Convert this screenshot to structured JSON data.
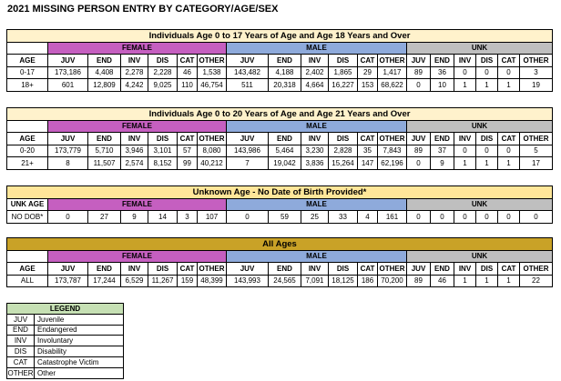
{
  "title": "2021 MISSING PERSON ENTRY BY CATEGORY/AGE/SEX",
  "tables": [
    {
      "heading": "Individuals Age 0 to 17 Years of Age and Age 18 Years and Over",
      "groups": [
        "FEMALE",
        "MALE",
        "UNK"
      ],
      "age_label": "AGE",
      "columns": [
        "JUV",
        "END",
        "INV",
        "DIS",
        "CAT",
        "OTHER",
        "JUV",
        "END",
        "INV",
        "DIS",
        "CAT",
        "OTHER",
        "JUV",
        "END",
        "INV",
        "DIS",
        "CAT",
        "OTHER"
      ],
      "rows": [
        {
          "age": "0-17",
          "cells": [
            "173,186",
            "4,408",
            "2,278",
            "2,228",
            "46",
            "1,538",
            "143,482",
            "4,188",
            "2,402",
            "1,865",
            "29",
            "1,417",
            "89",
            "36",
            "0",
            "0",
            "0",
            "3"
          ]
        },
        {
          "age": "18+",
          "cells": [
            "601",
            "12,809",
            "4,242",
            "9,025",
            "110",
            "46,754",
            "511",
            "20,318",
            "4,664",
            "16,227",
            "153",
            "68,622",
            "0",
            "10",
            "1",
            "1",
            "1",
            "19"
          ]
        }
      ]
    },
    {
      "heading": "Individuals Age 0 to 20 Years of Age and Age 21 Years and Over",
      "groups": [
        "FEMALE",
        "MALE",
        "UNK"
      ],
      "age_label": "AGE",
      "columns": [
        "JUV",
        "END",
        "INV",
        "DIS",
        "CAT",
        "OTHER",
        "JUV",
        "END",
        "INV",
        "DIS",
        "CAT",
        "OTHER",
        "JUV",
        "END",
        "INV",
        "DIS",
        "CAT",
        "OTHER"
      ],
      "rows": [
        {
          "age": "0-20",
          "cells": [
            "173,779",
            "5,710",
            "3,946",
            "3,101",
            "57",
            "8,080",
            "143,986",
            "5,464",
            "3,230",
            "2,828",
            "35",
            "7,843",
            "89",
            "37",
            "0",
            "0",
            "0",
            "5"
          ]
        },
        {
          "age": "21+",
          "cells": [
            "8",
            "11,507",
            "2,574",
            "8,152",
            "99",
            "40,212",
            "7",
            "19,042",
            "3,836",
            "15,264",
            "147",
            "62,196",
            "0",
            "9",
            "1",
            "1",
            "1",
            "17"
          ]
        }
      ]
    },
    {
      "heading": "Unknown Age - No Date of Birth Provided*",
      "corner": "UNK AGE",
      "groups": [
        "FEMALE",
        "MALE",
        "UNK"
      ],
      "rows": [
        {
          "age": "NO DOB*",
          "cells": [
            "0",
            "27",
            "9",
            "14",
            "3",
            "107",
            "0",
            "59",
            "25",
            "33",
            "4",
            "161",
            "0",
            "0",
            "0",
            "0",
            "0",
            "0"
          ]
        }
      ]
    },
    {
      "heading": "All Ages",
      "groups": [
        "FEMALE",
        "MALE",
        "UNK"
      ],
      "age_label": "AGE",
      "columns": [
        "JUV",
        "END",
        "INV",
        "DIS",
        "CAT",
        "OTHER",
        "JUV",
        "END",
        "INV",
        "DIS",
        "CAT",
        "OTHER",
        "JUV",
        "END",
        "INV",
        "DIS",
        "CAT",
        "OTHER"
      ],
      "rows": [
        {
          "age": "ALL",
          "cells": [
            "173,787",
            "17,244",
            "6,529",
            "11,267",
            "159",
            "48,399",
            "143,993",
            "24,565",
            "7,091",
            "18,125",
            "186",
            "70,200",
            "89",
            "46",
            "1",
            "1",
            "1",
            "22"
          ]
        }
      ]
    }
  ],
  "legend": {
    "title": "LEGEND",
    "items": [
      {
        "code": "JUV",
        "label": "Juvenile"
      },
      {
        "code": "END",
        "label": "Endangered"
      },
      {
        "code": "INV",
        "label": "Involuntary"
      },
      {
        "code": "DIS",
        "label": "Disability"
      },
      {
        "code": "CAT",
        "label": "Catastrophe Victim"
      },
      {
        "code": "OTHER",
        "label": "Other"
      }
    ]
  }
}
